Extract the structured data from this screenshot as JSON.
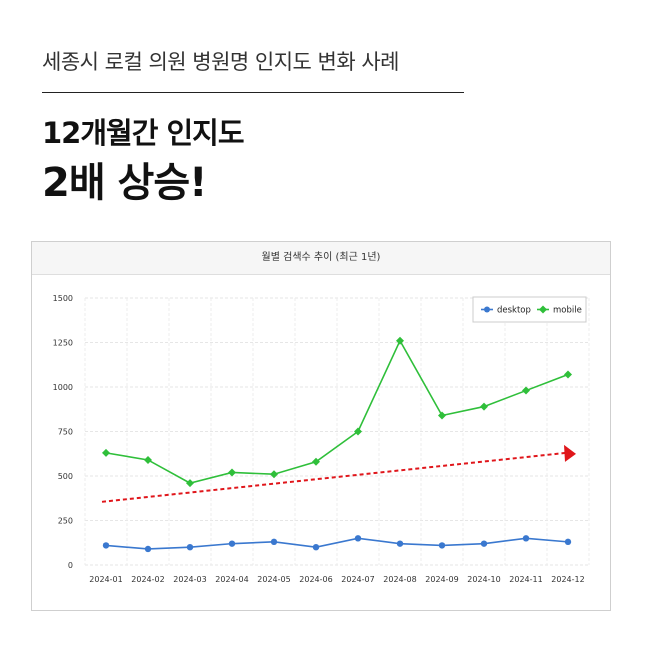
{
  "header": {
    "subtitle": "세종시 로컬 의원 병원명 인지도 변화 사례",
    "headline_line1": "12개월간 인지도",
    "headline_line2": "2배 상승!"
  },
  "colors": {
    "desktop": "#3a78cf",
    "mobile": "#2fbf3a",
    "trend": "#e0161b"
  },
  "chart_data": {
    "type": "line",
    "title": "월별 검색수 추이 (최근 1년)",
    "categories": [
      "2024-01",
      "2024-02",
      "2024-03",
      "2024-04",
      "2024-05",
      "2024-06",
      "2024-07",
      "2024-08",
      "2024-09",
      "2024-10",
      "2024-11",
      "2024-12"
    ],
    "ylim": [
      0,
      1500
    ],
    "yticks": [
      "0",
      "250",
      "500",
      "750",
      "1000",
      "1250",
      "1500"
    ],
    "grid": true,
    "legend_position": "top-right",
    "series": [
      {
        "name": "desktop",
        "marker": "circle",
        "values": [
          110,
          90,
          100,
          120,
          130,
          100,
          150,
          120,
          110,
          120,
          150,
          130
        ]
      },
      {
        "name": "mobile",
        "marker": "diamond",
        "values": [
          630,
          590,
          460,
          520,
          510,
          580,
          750,
          1260,
          840,
          890,
          980,
          1070
        ]
      }
    ],
    "trend_arrow": {
      "start": 355,
      "end": 630
    }
  }
}
